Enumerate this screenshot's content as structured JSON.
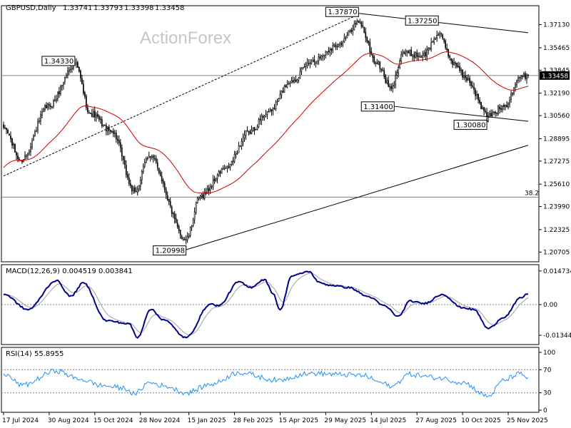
{
  "chart_data": {
    "type": "candlestick",
    "header": {
      "symbol": "GBPUSD,Daily",
      "open": "1.33741",
      "high": "1.33793",
      "low": "1.33398",
      "close": "1.33458"
    },
    "watermark": "ActionForex",
    "price_panel": {
      "ylim": [
        1.2,
        1.385
      ],
      "y_ticks": [
        "1.37130",
        "1.35465",
        "1.33845",
        "1.32190",
        "1.30560",
        "1.28895",
        "1.27275",
        "1.25610",
        "1.23990",
        "1.22325",
        "1.20705"
      ],
      "current_price": "1.33458",
      "fib_level": {
        "label": "38.2",
        "value": 1.2467
      },
      "swing_labels": [
        {
          "text": "1.34330",
          "date": "2024-09-25",
          "value": 1.3433
        },
        {
          "text": "1.20998",
          "date": "2025-01-13",
          "value": 1.20998
        },
        {
          "text": "1.37870",
          "date": "2025-07-01",
          "value": 1.3787
        },
        {
          "text": "1.31400",
          "date": "2025-08-01",
          "value": 1.314
        },
        {
          "text": "1.37250",
          "date": "2025-09-17",
          "value": 1.3725
        },
        {
          "text": "1.30080",
          "date": "2025-11-05",
          "value": 1.3008
        }
      ],
      "trendlines": [
        {
          "style": "dashed",
          "from": {
            "date": "2024-07-17",
            "value": 1.262
          },
          "to": {
            "date": "2025-07-01",
            "value": 1.3787
          }
        },
        {
          "style": "solid",
          "from": {
            "date": "2025-01-13",
            "value": 1.2087
          },
          "to": {
            "date": "2025-12-16",
            "value": 1.2842
          }
        },
        {
          "style": "solid",
          "from": {
            "date": "2025-07-01",
            "value": 1.3795
          },
          "to": {
            "date": "2025-12-16",
            "value": 1.3655
          }
        },
        {
          "style": "solid",
          "from": {
            "date": "2025-08-01",
            "value": 1.3125
          },
          "to": {
            "date": "2025-12-16",
            "value": 1.3015
          }
        }
      ],
      "close_anchors": [
        [
          "2024-07-17",
          1.297
        ],
        [
          "2024-08-02",
          1.2735
        ],
        [
          "2024-08-30",
          1.313
        ],
        [
          "2024-09-25",
          1.343
        ],
        [
          "2024-10-10",
          1.307
        ],
        [
          "2024-10-31",
          1.294
        ],
        [
          "2024-11-22",
          1.2505
        ],
        [
          "2024-12-06",
          1.2765
        ],
        [
          "2025-01-13",
          1.216
        ],
        [
          "2025-01-27",
          1.2475
        ],
        [
          "2025-02-20",
          1.2675
        ],
        [
          "2025-03-14",
          1.2935
        ],
        [
          "2025-04-03",
          1.3085
        ],
        [
          "2025-04-25",
          1.331
        ],
        [
          "2025-05-16",
          1.3455
        ],
        [
          "2025-06-11",
          1.357
        ],
        [
          "2025-07-01",
          1.373
        ],
        [
          "2025-07-18",
          1.343
        ],
        [
          "2025-08-01",
          1.325
        ],
        [
          "2025-08-13",
          1.351
        ],
        [
          "2025-09-02",
          1.349
        ],
        [
          "2025-09-17",
          1.364
        ],
        [
          "2025-10-02",
          1.344
        ],
        [
          "2025-10-14",
          1.333
        ],
        [
          "2025-11-05",
          1.3055
        ],
        [
          "2025-11-20",
          1.312
        ],
        [
          "2025-12-05",
          1.333
        ],
        [
          "2025-12-15",
          1.3346
        ]
      ]
    },
    "macd_panel": {
      "label": "MACD(12,26,9) 0.004519 0.003841",
      "ylim": [
        -0.0175,
        0.0175
      ],
      "y_ticks": [
        "0.014734",
        "0.00",
        "-0.013442"
      ],
      "macd_anchors": [
        [
          "2024-07-17",
          0.0046
        ],
        [
          "2024-08-09",
          -0.0022
        ],
        [
          "2024-09-06",
          0.0105
        ],
        [
          "2024-09-20",
          0.0036
        ],
        [
          "2024-10-03",
          0.0095
        ],
        [
          "2024-10-25",
          -0.007
        ],
        [
          "2024-11-18",
          -0.0084
        ],
        [
          "2024-11-26",
          -0.0145
        ],
        [
          "2024-12-09",
          -0.002
        ],
        [
          "2024-12-20",
          -0.0065
        ],
        [
          "2025-01-13",
          -0.0145
        ],
        [
          "2025-02-05",
          0.0002
        ],
        [
          "2025-02-13",
          -0.0005
        ],
        [
          "2025-03-05",
          0.01
        ],
        [
          "2025-03-17",
          0.0075
        ],
        [
          "2025-03-31",
          0.011
        ],
        [
          "2025-04-08",
          0.005
        ],
        [
          "2025-04-15",
          -0.0025
        ],
        [
          "2025-04-25",
          0.0125
        ],
        [
          "2025-05-13",
          0.0145
        ],
        [
          "2025-05-23",
          0.0095
        ],
        [
          "2025-06-03",
          0.0085
        ],
        [
          "2025-06-20",
          0.0075
        ],
        [
          "2025-07-10",
          0.0035
        ],
        [
          "2025-07-25",
          -0.0005
        ],
        [
          "2025-08-08",
          -0.0052
        ],
        [
          "2025-08-20",
          0.0015
        ],
        [
          "2025-09-03",
          0.0005
        ],
        [
          "2025-09-22",
          0.0045
        ],
        [
          "2025-10-09",
          -0.0012
        ],
        [
          "2025-10-22",
          -0.0022
        ],
        [
          "2025-11-05",
          -0.0105
        ],
        [
          "2025-11-20",
          -0.0055
        ],
        [
          "2025-12-08",
          0.003
        ],
        [
          "2025-12-15",
          0.0048
        ]
      ]
    },
    "rsi_panel": {
      "label": "RSI(14) 55.8955",
      "ylim": [
        0,
        100
      ],
      "y_ticks": [
        "100",
        "70",
        "30",
        "0"
      ],
      "levels": [
        70,
        30
      ],
      "rsi_anchors": [
        [
          "2024-07-17",
          63
        ],
        [
          "2024-08-05",
          43
        ],
        [
          "2024-09-06",
          68
        ],
        [
          "2024-10-01",
          53
        ],
        [
          "2024-10-23",
          42
        ],
        [
          "2024-11-13",
          38
        ],
        [
          "2024-11-22",
          28
        ],
        [
          "2024-12-06",
          48
        ],
        [
          "2024-12-23",
          42
        ],
        [
          "2025-01-13",
          30
        ],
        [
          "2025-02-06",
          45
        ],
        [
          "2025-03-05",
          65
        ],
        [
          "2025-04-11",
          52
        ],
        [
          "2025-05-13",
          64
        ],
        [
          "2025-06-11",
          62
        ],
        [
          "2025-07-04",
          60
        ],
        [
          "2025-07-23",
          48
        ],
        [
          "2025-08-01",
          40
        ],
        [
          "2025-08-19",
          62
        ],
        [
          "2025-09-17",
          56
        ],
        [
          "2025-10-10",
          48
        ],
        [
          "2025-11-05",
          24
        ],
        [
          "2025-11-20",
          52
        ],
        [
          "2025-12-05",
          63
        ],
        [
          "2025-12-15",
          56
        ]
      ]
    },
    "x_axis": {
      "tick_labels": [
        {
          "label": "17 Jul 2024",
          "date": "2024-07-17"
        },
        {
          "label": "30 Aug 2024",
          "date": "2024-08-30"
        },
        {
          "label": "15 Oct 2024",
          "date": "2024-10-15"
        },
        {
          "label": "28 Nov 2024",
          "date": "2024-11-28"
        },
        {
          "label": "15 Jan 2025",
          "date": "2025-01-15"
        },
        {
          "label": "28 Feb 2025",
          "date": "2025-02-28"
        },
        {
          "label": "15 Apr 2025",
          "date": "2025-04-15"
        },
        {
          "label": "29 May 2025",
          "date": "2025-05-29"
        },
        {
          "label": "14 Jul 2025",
          "date": "2025-07-14"
        },
        {
          "label": "27 Aug 2025",
          "date": "2025-08-27"
        },
        {
          "label": "10 Oct 2025",
          "date": "2025-10-10"
        },
        {
          "label": "25 Nov 2025",
          "date": "2025-11-25"
        }
      ]
    },
    "colors": {
      "candle": "#000000",
      "moving_average": "#cc0000",
      "macd_line": "#00008b",
      "signal_line": "#a0a0a0",
      "rsi_line": "#1e90ff",
      "grid_level": "#808080",
      "trendline": "#000000"
    }
  }
}
